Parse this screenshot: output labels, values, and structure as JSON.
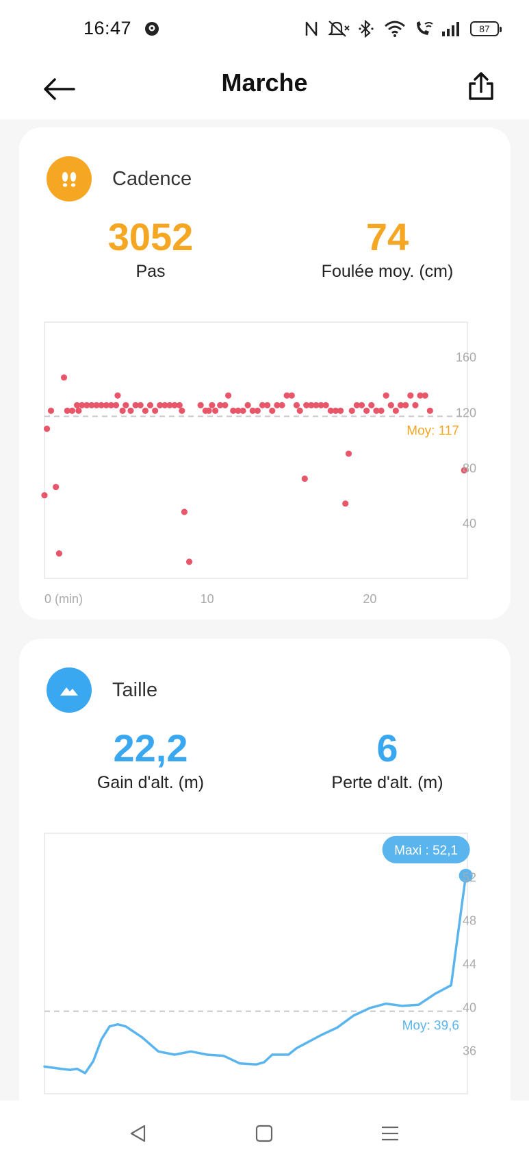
{
  "status_bar": {
    "time": "16:47",
    "battery": "87",
    "icons": [
      "notification-app-icon",
      "nfc-icon",
      "mute-icon",
      "bluetooth-icon",
      "wifi-icon",
      "wifi-calling-icon",
      "signal-icon",
      "battery-icon"
    ]
  },
  "app_bar": {
    "title": "Marche",
    "back_icon": "arrow-left-icon",
    "share_icon": "share-icon"
  },
  "cadence": {
    "title": "Cadence",
    "icon": "footprints-icon",
    "accent": "#f5a623",
    "steps_value": "3052",
    "steps_label": "Pas",
    "stride_value": "74",
    "stride_label": "Foulée moy. (cm)"
  },
  "altitude": {
    "title": "Taille",
    "icon": "mountain-icon",
    "accent": "#3aa8f0",
    "gain_value": "22,2",
    "gain_label": "Gain d'alt. (m)",
    "loss_value": "6",
    "loss_label": "Perte d'alt. (m)"
  },
  "chart_data": [
    {
      "type": "scatter",
      "title": "Cadence",
      "xlabel": "(min)",
      "ylabel": "",
      "x_ticks": [
        "0 (min)",
        "10",
        "20"
      ],
      "y_ticks": [
        "160",
        "120",
        "80",
        "40"
      ],
      "xlim": [
        0,
        26
      ],
      "ylim": [
        0,
        185
      ],
      "color": "#e8566a",
      "average": 117,
      "average_label": "Moy: 117",
      "points": [
        [
          0,
          60
        ],
        [
          0.15,
          108
        ],
        [
          0.4,
          121
        ],
        [
          0.7,
          66
        ],
        [
          0.9,
          18
        ],
        [
          1.2,
          145
        ],
        [
          1.4,
          121
        ],
        [
          1.7,
          121
        ],
        [
          2.0,
          125
        ],
        [
          2.1,
          121
        ],
        [
          2.3,
          125
        ],
        [
          2.6,
          125
        ],
        [
          2.9,
          125
        ],
        [
          3.2,
          125
        ],
        [
          3.5,
          125
        ],
        [
          3.8,
          125
        ],
        [
          4.1,
          125
        ],
        [
          4.4,
          125
        ],
        [
          4.5,
          132
        ],
        [
          4.8,
          121
        ],
        [
          5.0,
          125
        ],
        [
          5.3,
          121
        ],
        [
          5.6,
          125
        ],
        [
          5.9,
          125
        ],
        [
          6.2,
          121
        ],
        [
          6.5,
          125
        ],
        [
          6.8,
          121
        ],
        [
          7.1,
          125
        ],
        [
          7.4,
          125
        ],
        [
          7.7,
          125
        ],
        [
          8.0,
          125
        ],
        [
          8.3,
          125
        ],
        [
          8.45,
          121
        ],
        [
          8.6,
          48
        ],
        [
          8.9,
          12
        ],
        [
          9.6,
          125
        ],
        [
          9.9,
          121
        ],
        [
          10.1,
          121
        ],
        [
          10.3,
          125
        ],
        [
          10.5,
          121
        ],
        [
          10.8,
          125
        ],
        [
          11.1,
          125
        ],
        [
          11.3,
          132
        ],
        [
          11.6,
          121
        ],
        [
          11.9,
          121
        ],
        [
          12.2,
          121
        ],
        [
          12.5,
          125
        ],
        [
          12.8,
          121
        ],
        [
          13.1,
          121
        ],
        [
          13.4,
          125
        ],
        [
          13.7,
          125
        ],
        [
          14.0,
          121
        ],
        [
          14.3,
          125
        ],
        [
          14.6,
          125
        ],
        [
          14.9,
          132
        ],
        [
          15.2,
          132
        ],
        [
          15.5,
          125
        ],
        [
          15.7,
          121
        ],
        [
          16.0,
          72
        ],
        [
          16.1,
          125
        ],
        [
          16.4,
          125
        ],
        [
          16.7,
          125
        ],
        [
          17.0,
          125
        ],
        [
          17.3,
          125
        ],
        [
          17.6,
          121
        ],
        [
          17.9,
          121
        ],
        [
          18.2,
          121
        ],
        [
          18.5,
          54
        ],
        [
          18.7,
          90
        ],
        [
          18.9,
          121
        ],
        [
          19.2,
          125
        ],
        [
          19.5,
          125
        ],
        [
          19.8,
          121
        ],
        [
          20.1,
          125
        ],
        [
          20.4,
          121
        ],
        [
          20.7,
          121
        ],
        [
          21.0,
          132
        ],
        [
          21.3,
          125
        ],
        [
          21.6,
          121
        ],
        [
          21.9,
          125
        ],
        [
          22.2,
          125
        ],
        [
          22.5,
          132
        ],
        [
          22.8,
          125
        ],
        [
          23.1,
          132
        ],
        [
          23.4,
          132
        ],
        [
          23.7,
          121
        ],
        [
          25.8,
          78
        ]
      ]
    },
    {
      "type": "line",
      "title": "Taille",
      "xlabel": "",
      "ylabel": "",
      "y_ticks": [
        "52",
        "48",
        "44",
        "40",
        "36"
      ],
      "xlim": [
        0,
        26
      ],
      "ylim": [
        32,
        56
      ],
      "color": "#5ab4ee",
      "average": 39.6,
      "average_label": "Moy: 39,6",
      "max_label": "Maxi : 52,1",
      "x": [
        0,
        1,
        1.6,
        2,
        2.5,
        3,
        3.5,
        4,
        4.5,
        5,
        6,
        7,
        8,
        9,
        10,
        11,
        12,
        13,
        13.5,
        14,
        15,
        15.5,
        16,
        17,
        18,
        19,
        20,
        21,
        22,
        23,
        23.5,
        24,
        25,
        25.9
      ],
      "y": [
        34.5,
        34.3,
        34.2,
        34.3,
        33.9,
        35.0,
        37.0,
        38.2,
        38.4,
        38.2,
        37.2,
        35.9,
        35.6,
        35.9,
        35.6,
        35.5,
        34.8,
        34.7,
        34.9,
        35.6,
        35.6,
        36.2,
        36.6,
        37.4,
        38.1,
        39.2,
        39.9,
        40.3,
        40.1,
        40.2,
        40.7,
        41.2,
        42.0,
        52.1
      ]
    }
  ],
  "nav_bar": {
    "back_icon": "triangle-back-icon",
    "home_icon": "square-home-icon",
    "menu_icon": "menu-lines-icon"
  }
}
